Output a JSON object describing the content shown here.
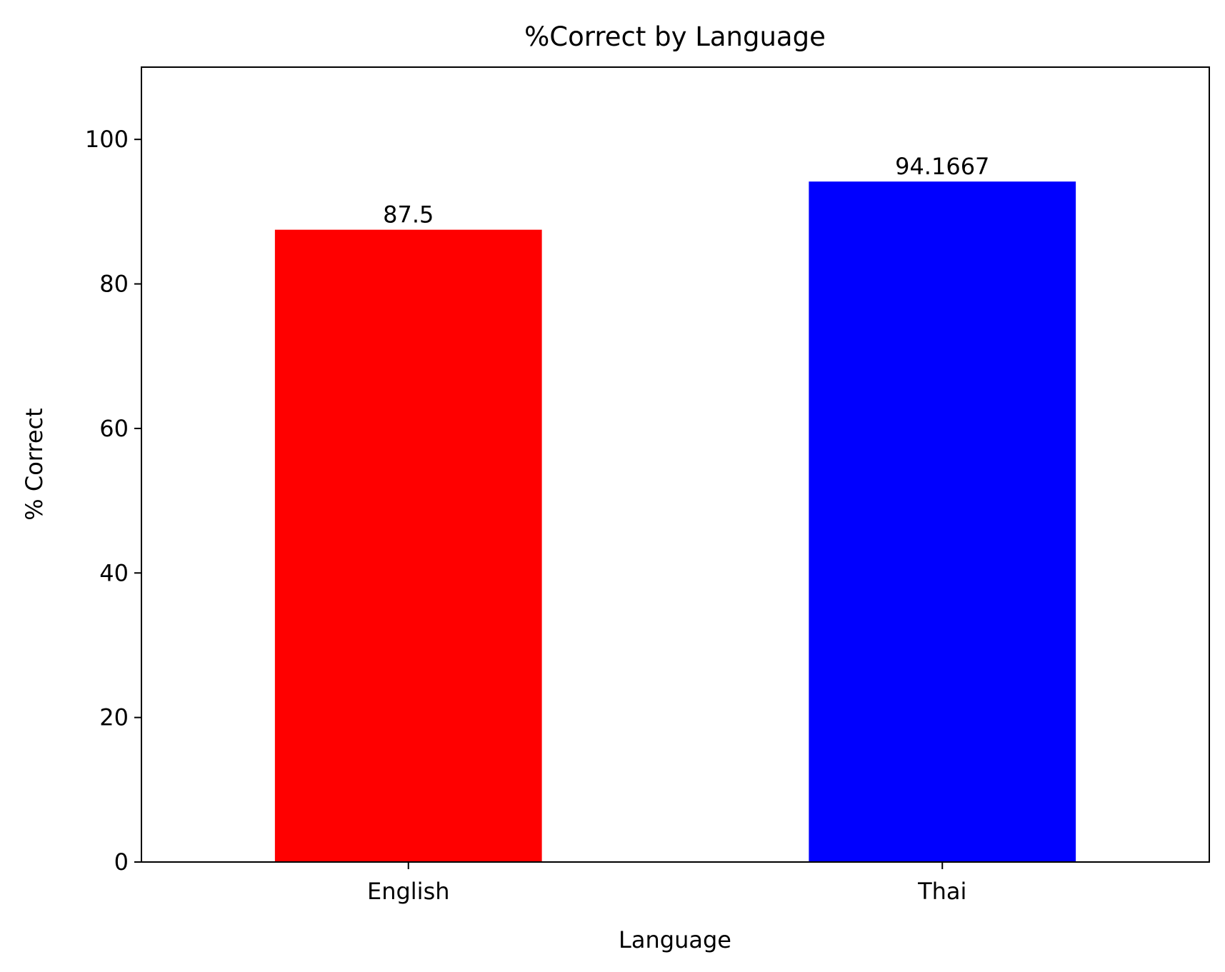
{
  "chart_data": {
    "type": "bar",
    "title": "%Correct by Language",
    "xlabel": "Language",
    "ylabel": "% Correct",
    "categories": [
      "English",
      "Thai"
    ],
    "values": [
      87.5,
      94.1667
    ],
    "value_labels": [
      "87.5",
      "94.1667"
    ],
    "bar_colors": [
      "#ff0000",
      "#0000ff"
    ],
    "ylim": [
      0,
      110
    ],
    "yticks": [
      0,
      20,
      40,
      60,
      80,
      100
    ],
    "grid": false,
    "legend": null
  }
}
